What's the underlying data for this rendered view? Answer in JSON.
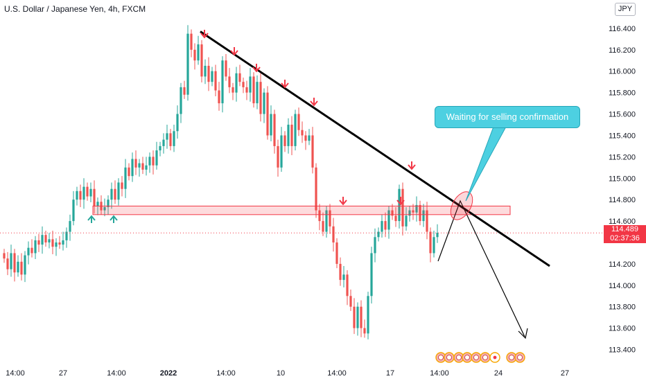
{
  "chart_data": {
    "type": "candlestick",
    "title": "U.S. Dollar / Japanese Yen, 4h, FXCM",
    "currency": "JPY",
    "ylim": [
      113.3,
      116.6
    ],
    "y_ticks": [
      "116.400",
      "116.200",
      "116.000",
      "115.800",
      "115.600",
      "115.400",
      "115.200",
      "115.000",
      "114.800",
      "114.600",
      "114.200",
      "114.000",
      "113.800",
      "113.600",
      "113.400"
    ],
    "x_ticks": [
      "14:00",
      "27",
      "14:00",
      "2022",
      "14:00",
      "10",
      "14:00",
      "17",
      "14:00",
      "24",
      "27"
    ],
    "last_price": "114.489",
    "countdown": "02:37:36",
    "annotation": "Waiting for selling confirmation",
    "resistance_zone": [
      114.66,
      114.74
    ],
    "trendline": [
      [
        116.37
      ],
      [
        114.18
      ]
    ],
    "colors": {
      "up": "#26a69a",
      "down": "#ef5350",
      "arrow_down": "#f23645",
      "arrow_up": "#26a69a",
      "callout": "#4dd0e1"
    },
    "closes": [
      114.25,
      114.15,
      114.3,
      114.12,
      114.22,
      114.1,
      114.28,
      114.35,
      114.3,
      114.42,
      114.38,
      114.47,
      114.4,
      114.43,
      114.36,
      114.4,
      114.38,
      114.42,
      114.5,
      114.6,
      114.8,
      114.88,
      114.8,
      114.92,
      114.83,
      114.9,
      114.74,
      114.78,
      114.7,
      114.73,
      114.8,
      114.9,
      114.8,
      114.96,
      114.9,
      115.1,
      115.02,
      115.18,
      115.1,
      115.14,
      115.08,
      115.12,
      115.2,
      115.12,
      115.26,
      115.3,
      115.36,
      115.42,
      115.3,
      115.44,
      115.6,
      115.85,
      115.78,
      116.35,
      116.2,
      116.1,
      116.25,
      115.95,
      116.05,
      115.9,
      116.0,
      115.82,
      115.7,
      116.1,
      115.95,
      115.85,
      115.8,
      115.98,
      115.9,
      115.85,
      115.8,
      115.95,
      115.7,
      115.9,
      115.6,
      115.8,
      115.4,
      115.6,
      115.3,
      115.1,
      115.4,
      115.3,
      115.5,
      115.3,
      115.6,
      115.45,
      115.4,
      115.35,
      115.4,
      115.1,
      114.7,
      114.6,
      114.5,
      114.7,
      114.55,
      114.4,
      114.2,
      114.05,
      114.1,
      113.9,
      113.8,
      113.6,
      113.8,
      113.6,
      113.55,
      113.9,
      114.3,
      114.45,
      114.5,
      114.6,
      114.52,
      114.7,
      114.65,
      114.6,
      114.9,
      114.55,
      114.65,
      114.7,
      114.68,
      114.75,
      114.6,
      114.7,
      114.5,
      114.3,
      114.45,
      114.49
    ]
  }
}
